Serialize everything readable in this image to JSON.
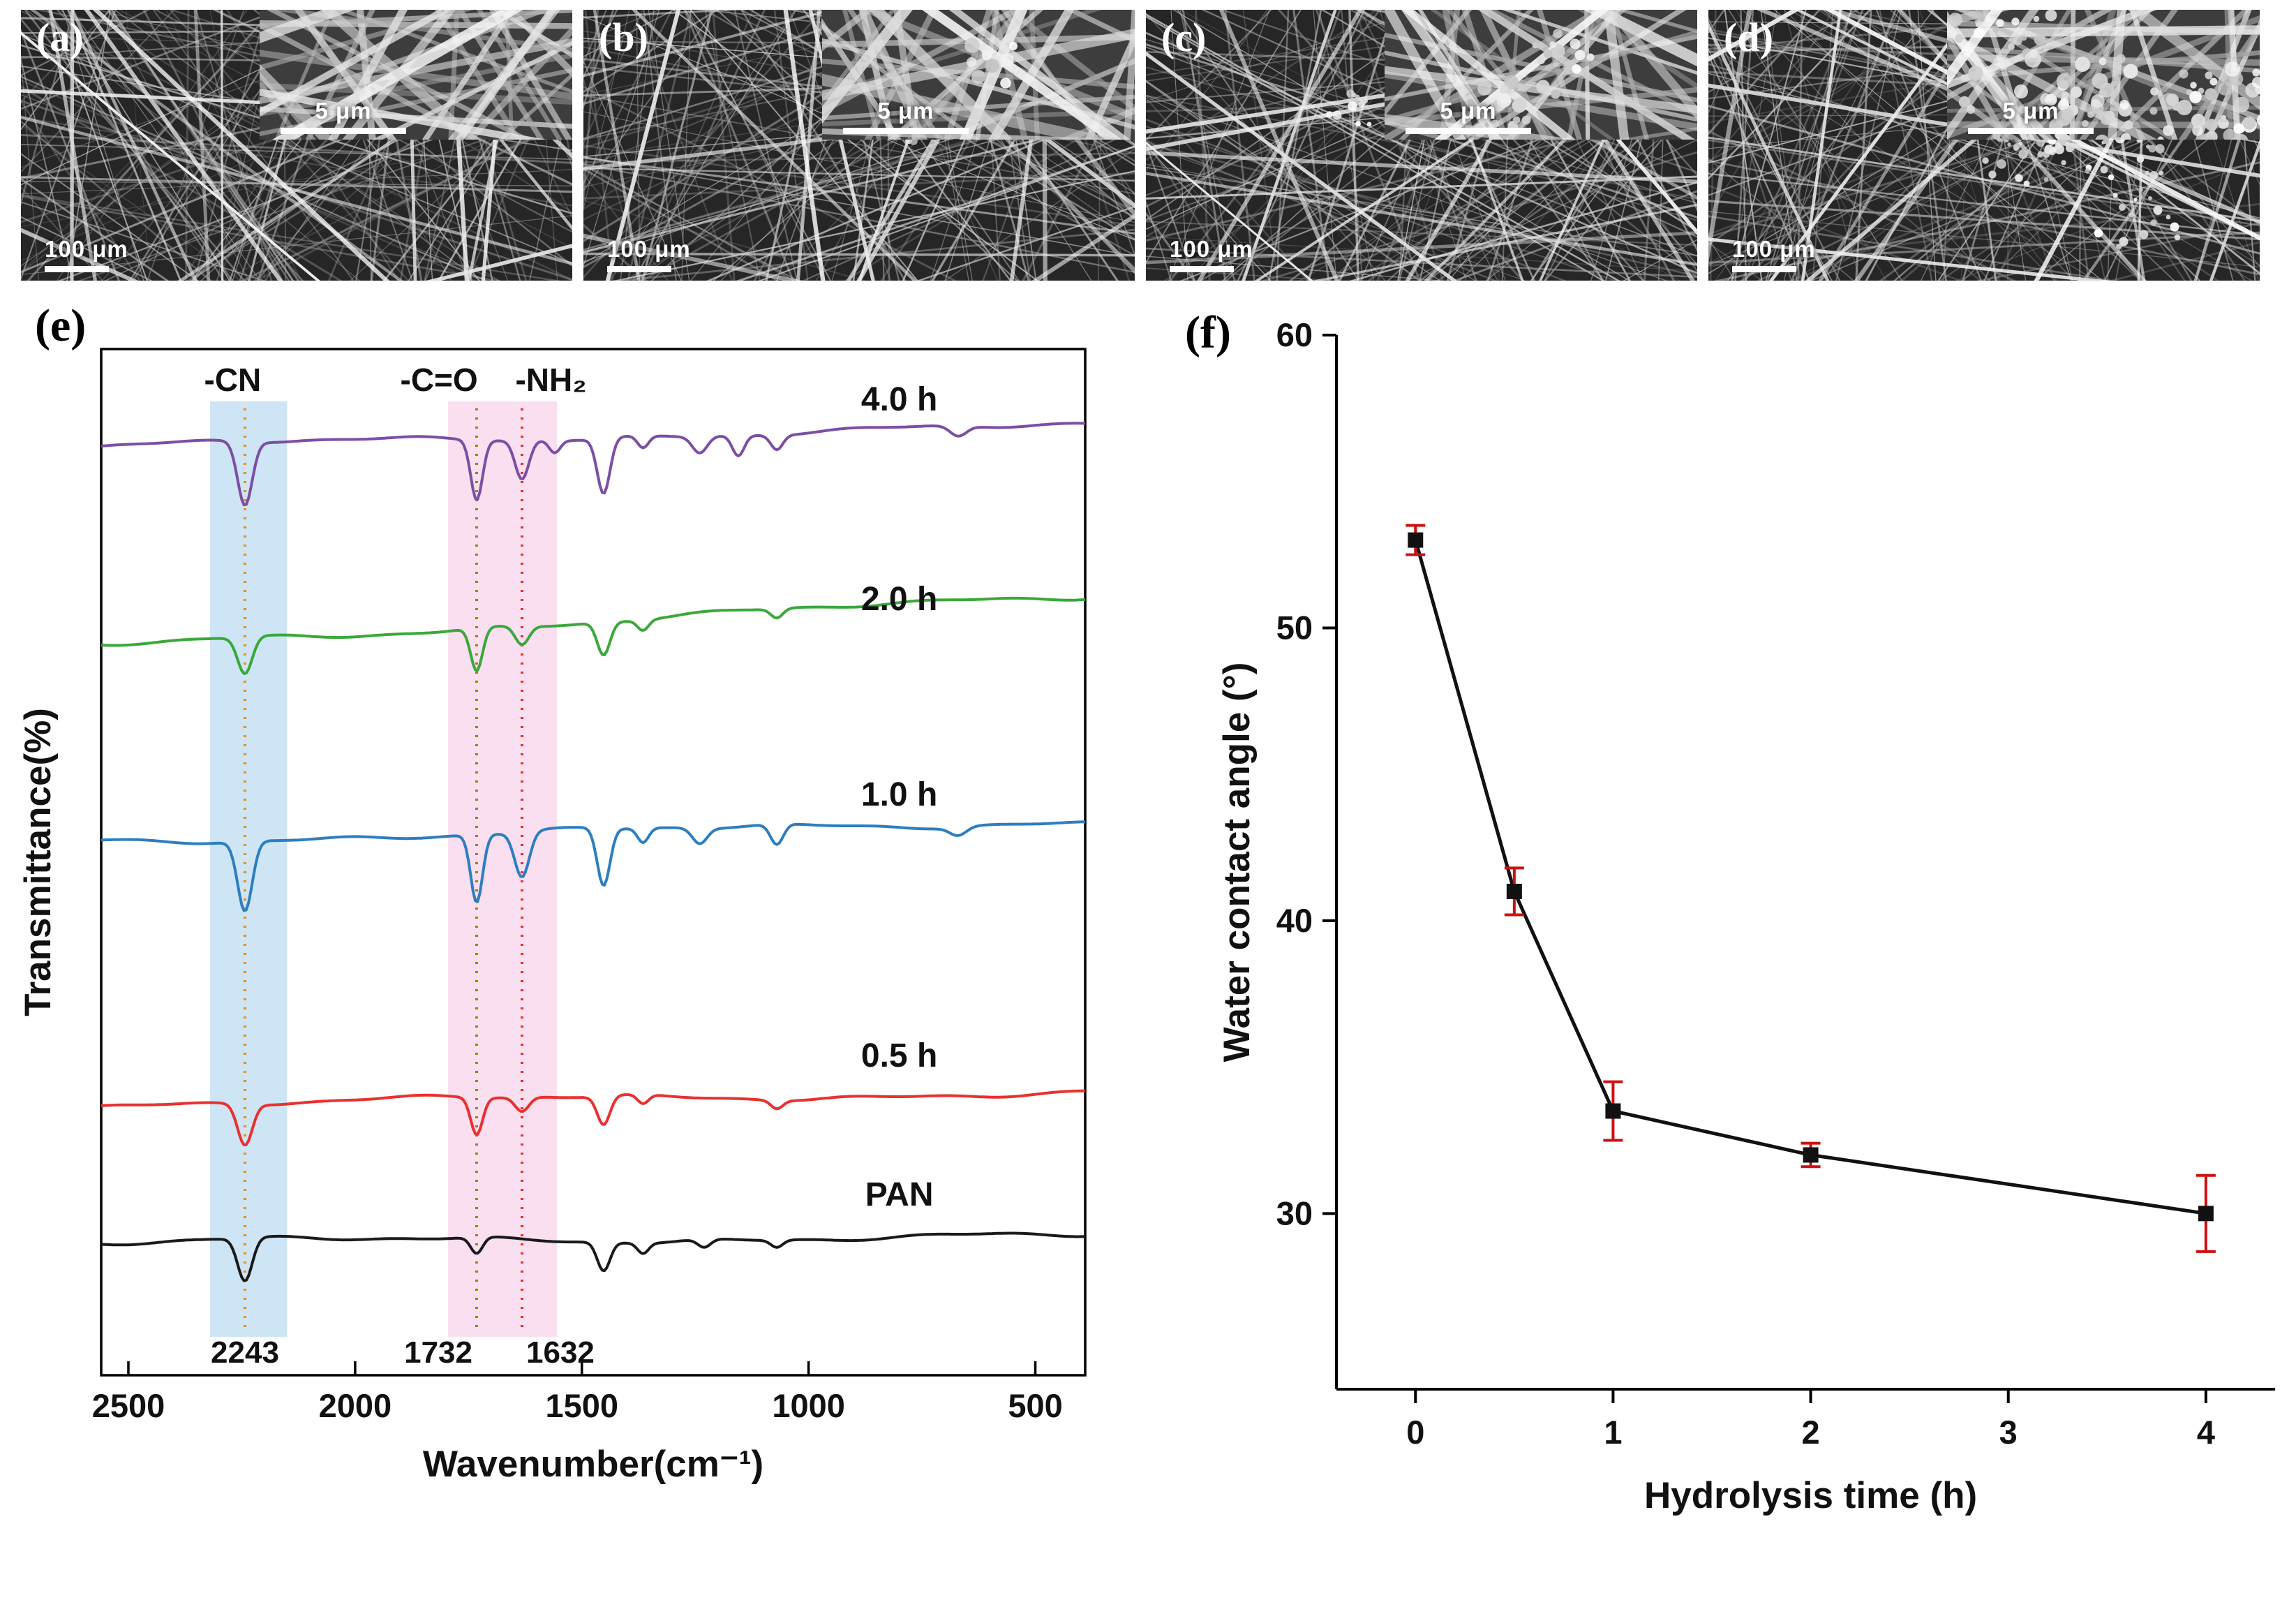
{
  "sem_panels": [
    {
      "label": "(a)",
      "scale_label": "100 μm",
      "inset_scale_label": "5 μm",
      "seed": 11,
      "particle_density": 0,
      "inset_particle_density": 0
    },
    {
      "label": "(b)",
      "scale_label": "100 μm",
      "inset_scale_label": "5 μm",
      "seed": 23,
      "particle_density": 0.15,
      "inset_particle_density": 0.2
    },
    {
      "label": "(c)",
      "scale_label": "100 μm",
      "inset_scale_label": "5 μm",
      "seed": 37,
      "particle_density": 0.35,
      "inset_particle_density": 0.35
    },
    {
      "label": "(d)",
      "scale_label": "100 μm",
      "inset_scale_label": "5 μm",
      "seed": 51,
      "particle_density": 1,
      "inset_particle_density": 1
    }
  ],
  "chart_data": [
    {
      "type": "line",
      "panel_label": "(e)",
      "xlabel": "Wavenumber(cm⁻¹)",
      "ylabel": "Transmittance(%)",
      "x_ticks": [
        2500,
        2000,
        1500,
        1000,
        500
      ],
      "x_range": [
        2560,
        390
      ],
      "x_axis_reversed": true,
      "annotations": [
        {
          "text": "-CN",
          "wn": 2270
        },
        {
          "text": "-C=O",
          "wn": 1815
        },
        {
          "text": "-NH₂",
          "wn": 1568
        }
      ],
      "peak_labels": [
        {
          "text": "2243",
          "wn": 2243,
          "color": "#F08C00",
          "anchor": "middle"
        },
        {
          "text": "1732",
          "wn": 1732,
          "color": "#9A8400",
          "anchor": "end"
        },
        {
          "text": "1632",
          "wn": 1632,
          "color": "#E8312F",
          "anchor": "start"
        }
      ],
      "bands": [
        {
          "from": 2320,
          "to": 2150,
          "color": "#9DCBEB",
          "opacity": 0.5
        },
        {
          "from": 1795,
          "to": 1555,
          "color": "#F2B8DC",
          "opacity": 0.45
        }
      ],
      "dotted_lines": [
        {
          "wn": 2243,
          "color": "#F08C00"
        },
        {
          "wn": 1732,
          "color": "#9A8400"
        },
        {
          "wn": 1632,
          "color": "#E8312F"
        }
      ],
      "curve_label_wn": 800,
      "series": [
        {
          "name": "4.0 h",
          "color": "#7C4EA5",
          "baseline": 9.5,
          "tilt": -2,
          "peaks": [
            [
              2243,
              6.2,
              16
            ],
            [
              1732,
              5.8,
              13
            ],
            [
              1632,
              3.8,
              15
            ],
            [
              1560,
              1.2,
              12
            ],
            [
              1452,
              5.4,
              14
            ],
            [
              1365,
              1.2,
              12
            ],
            [
              1240,
              1.6,
              16
            ],
            [
              1155,
              2.0,
              13
            ],
            [
              1070,
              1.4,
              13
            ],
            [
              670,
              1.0,
              18
            ]
          ]
        },
        {
          "name": "2.0 h",
          "color": "#3AA83A",
          "baseline": 29,
          "tilt": -5,
          "peaks": [
            [
              2243,
              3.6,
              16
            ],
            [
              1732,
              4.2,
              13
            ],
            [
              1632,
              1.8,
              15
            ],
            [
              1452,
              3.2,
              14
            ],
            [
              1365,
              1.0,
              12
            ],
            [
              1070,
              0.9,
              13
            ]
          ]
        },
        {
          "name": "1.0 h",
          "color": "#2E7EBF",
          "baseline": 48,
          "tilt": -2,
          "peaks": [
            [
              2243,
              6.8,
              16
            ],
            [
              1732,
              6.6,
              13
            ],
            [
              1632,
              4.4,
              16
            ],
            [
              1452,
              5.6,
              14
            ],
            [
              1365,
              1.4,
              12
            ],
            [
              1240,
              1.5,
              16
            ],
            [
              1070,
              2.0,
              14
            ],
            [
              670,
              0.8,
              18
            ]
          ]
        },
        {
          "name": "0.5 h",
          "color": "#E8312F",
          "baseline": 73.5,
          "tilt": -1,
          "peaks": [
            [
              2243,
              4.0,
              16
            ],
            [
              1732,
              3.6,
              13
            ],
            [
              1632,
              1.4,
              15
            ],
            [
              1452,
              2.8,
              14
            ],
            [
              1365,
              0.9,
              12
            ],
            [
              1070,
              0.8,
              13
            ]
          ]
        },
        {
          "name": "PAN",
          "color": "#1A1A1A",
          "baseline": 87,
          "tilt": -0.5,
          "peaks": [
            [
              2243,
              4.2,
              16
            ],
            [
              1732,
              1.6,
              13
            ],
            [
              1452,
              2.8,
              14
            ],
            [
              1365,
              1.0,
              12
            ],
            [
              1230,
              0.8,
              14
            ],
            [
              1070,
              0.7,
              13
            ]
          ]
        }
      ]
    },
    {
      "type": "scatter-line",
      "panel_label": "(f)",
      "xlabel": "Hydrolysis time (h)",
      "ylabel": "Water contact angle (°)",
      "x_ticks": [
        0,
        1,
        2,
        3,
        4
      ],
      "y_ticks": [
        30,
        40,
        50,
        60
      ],
      "x_range": [
        -0.4,
        4.35
      ],
      "y_range": [
        24,
        60
      ],
      "x": [
        0,
        0.5,
        1,
        2,
        4
      ],
      "y": [
        53,
        41,
        33.5,
        32,
        30
      ],
      "yerr": [
        0.5,
        0.8,
        1.0,
        0.4,
        1.3
      ],
      "line_color": "#111111",
      "marker_color": "#111111",
      "error_color": "#CC1111"
    }
  ]
}
